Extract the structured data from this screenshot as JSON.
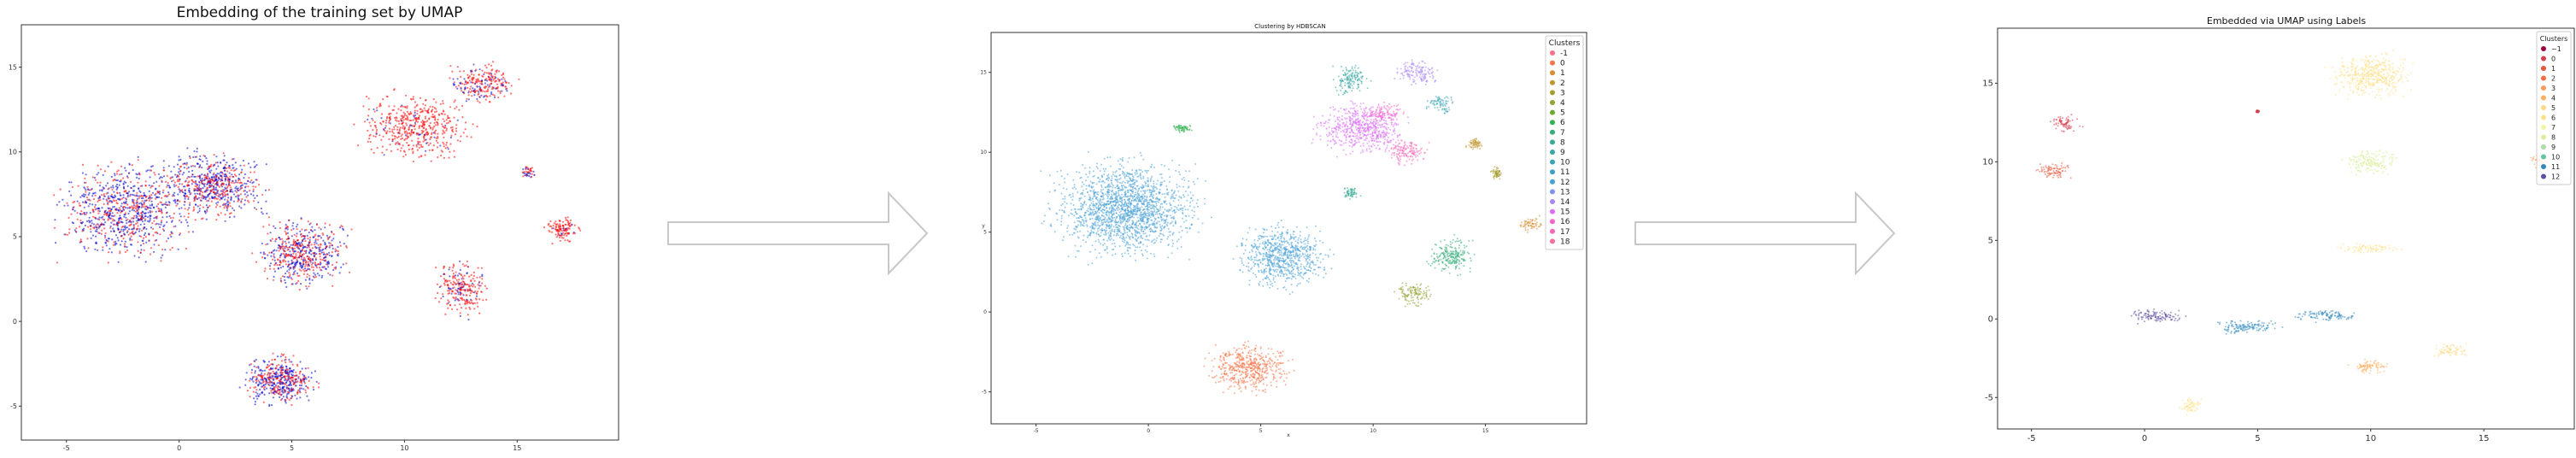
{
  "chart_data": [
    {
      "type": "scatter",
      "title": "Embedding of the training set by UMAP",
      "xlabel": "",
      "ylabel": "",
      "xlim": [
        -7,
        19.5
      ],
      "ylim": [
        -7,
        17.5
      ],
      "xticks": [
        "-5",
        "0",
        "5",
        "10",
        "15"
      ],
      "xtick_values": [
        -5,
        0,
        5,
        10,
        15
      ],
      "yticks": [
        "15",
        "10",
        "5",
        "0",
        "-5"
      ],
      "ytick_values": [
        15,
        10,
        5,
        0,
        -5
      ],
      "series": [
        {
          "name": "red",
          "color": "#ff0000"
        },
        {
          "name": "blue",
          "color": "#0000cc"
        }
      ],
      "clusters": [
        {
          "x": -2.5,
          "y": 6.5,
          "rx": 3.5,
          "ry": 3.5,
          "mix": 0.6
        },
        {
          "x": 1.5,
          "y": 8.0,
          "rx": 3.0,
          "ry": 2.5,
          "mix": 0.55
        },
        {
          "x": 5.5,
          "y": 4.0,
          "rx": 2.5,
          "ry": 2.5,
          "mix": 0.5
        },
        {
          "x": 4.5,
          "y": -3.5,
          "rx": 2.0,
          "ry": 1.8,
          "mix": 0.55
        },
        {
          "x": 10.5,
          "y": 11.5,
          "rx": 3.0,
          "ry": 2.5,
          "mix": 0.1
        },
        {
          "x": 13.5,
          "y": 14.0,
          "rx": 1.8,
          "ry": 1.5,
          "mix": 0.3
        },
        {
          "x": 12.5,
          "y": 2.0,
          "rx": 1.5,
          "ry": 2.0,
          "mix": 0.2
        },
        {
          "x": 17.0,
          "y": 5.5,
          "rx": 1.0,
          "ry": 1.0,
          "mix": 0.05
        },
        {
          "x": 15.5,
          "y": 8.8,
          "rx": 0.4,
          "ry": 0.6,
          "mix": 0.5
        }
      ]
    },
    {
      "type": "scatter",
      "title": "Clustering by HDBSCAN",
      "xlabel": "x",
      "ylabel": "y",
      "xlim": [
        -7,
        19.5
      ],
      "ylim": [
        -7,
        17.5
      ],
      "xticks": [
        "-5",
        "0",
        "5",
        "10",
        "15"
      ],
      "xtick_values": [
        -5,
        0,
        5,
        10,
        15
      ],
      "yticks": [
        "15",
        "10",
        "5",
        "0",
        "-5"
      ],
      "ytick_values": [
        15,
        10,
        5,
        0,
        -5
      ],
      "legend": {
        "title": "Clusters",
        "position": "top-right",
        "entries": [
          "-1",
          "0",
          "1",
          "2",
          "3",
          "4",
          "5",
          "6",
          "7",
          "8",
          "9",
          "10",
          "11",
          "12",
          "13",
          "14",
          "15",
          "16",
          "17",
          "18"
        ],
        "colors": [
          "#f77189",
          "#f67448",
          "#d58c32",
          "#c0962f",
          "#a69d31",
          "#94a231",
          "#6eaa31",
          "#33b04f",
          "#36ad7c",
          "#38aa93",
          "#39a8a4",
          "#3ba4b4",
          "#3da0c4",
          "#48a0d6",
          "#7d95e9",
          "#aa88f4",
          "#d970f4",
          "#f565cc",
          "#f669b6",
          "#f66d9c"
        ]
      },
      "clusters": [
        {
          "label": "12",
          "x": -1.0,
          "y": 6.5,
          "rx": 4.0,
          "ry": 3.8
        },
        {
          "label": "12",
          "x": 6.0,
          "y": 3.5,
          "rx": 2.5,
          "ry": 2.5
        },
        {
          "label": "0",
          "x": 4.5,
          "y": -3.5,
          "rx": 2.2,
          "ry": 2.0
        },
        {
          "label": "15",
          "x": 9.5,
          "y": 11.5,
          "rx": 2.5,
          "ry": 2.0
        },
        {
          "label": "7",
          "x": 13.5,
          "y": 3.5,
          "rx": 1.2,
          "ry": 1.5
        },
        {
          "label": "4",
          "x": 11.8,
          "y": 1.2,
          "rx": 1.0,
          "ry": 1.0
        },
        {
          "label": "9",
          "x": 9.0,
          "y": 14.5,
          "rx": 1.0,
          "ry": 1.2
        },
        {
          "label": "14",
          "x": 12.0,
          "y": 15.0,
          "rx": 1.2,
          "ry": 1.0
        },
        {
          "label": "10",
          "x": 13.0,
          "y": 13.0,
          "rx": 0.8,
          "ry": 0.8
        },
        {
          "label": "3",
          "x": 15.5,
          "y": 8.7,
          "rx": 0.3,
          "ry": 0.5
        },
        {
          "label": "2",
          "x": 14.5,
          "y": 10.5,
          "rx": 0.5,
          "ry": 0.4
        },
        {
          "label": "1",
          "x": 17.0,
          "y": 5.5,
          "rx": 0.6,
          "ry": 0.6
        },
        {
          "label": "8",
          "x": 9.0,
          "y": 7.5,
          "rx": 0.5,
          "ry": 0.5
        },
        {
          "label": "6",
          "x": 1.5,
          "y": 11.5,
          "rx": 0.6,
          "ry": 0.3
        },
        {
          "label": "17",
          "x": 11.5,
          "y": 10.0,
          "rx": 1.2,
          "ry": 1.0
        },
        {
          "label": "16",
          "x": 10.5,
          "y": 12.5,
          "rx": 1.0,
          "ry": 0.8
        }
      ]
    },
    {
      "type": "scatter",
      "title": "Embedded via UMAP using Labels",
      "xlabel": "",
      "ylabel": "",
      "xlim": [
        -6.5,
        19
      ],
      "ylim": [
        -7,
        18.5
      ],
      "xticks": [
        "-5",
        "0",
        "5",
        "10",
        "15"
      ],
      "xtick_values": [
        -5,
        0,
        5,
        10,
        15
      ],
      "yticks": [
        "15",
        "10",
        "5",
        "0",
        "-5"
      ],
      "ytick_values": [
        15,
        10,
        5,
        0,
        -5
      ],
      "legend": {
        "title": "Clusters",
        "position": "top-right",
        "entries": [
          "−1",
          "0",
          "1",
          "2",
          "3",
          "4",
          "5",
          "6",
          "7",
          "8",
          "9",
          "10",
          "11",
          "12"
        ],
        "colors": [
          "#9e0142",
          "#d53e4f",
          "#e8553a",
          "#f46d43",
          "#fb9c59",
          "#fdae61",
          "#fed885",
          "#fee08b",
          "#eef7a3",
          "#d8ef9b",
          "#abdda4",
          "#66c2a5",
          "#3288bd",
          "#5e4fa2"
        ]
      },
      "clusters": [
        {
          "label": "0",
          "x": -3.5,
          "y": 12.5,
          "rx": 0.9,
          "ry": 0.7
        },
        {
          "label": "1",
          "x": -4.0,
          "y": 9.5,
          "rx": 1.0,
          "ry": 0.7
        },
        {
          "label": "6",
          "x": 10.0,
          "y": 15.5,
          "rx": 2.2,
          "ry": 1.8
        },
        {
          "label": "8",
          "x": 10.0,
          "y": 10.0,
          "rx": 1.5,
          "ry": 1.0
        },
        {
          "label": "6",
          "x": 10.0,
          "y": 4.5,
          "rx": 1.8,
          "ry": 0.4
        },
        {
          "label": "12",
          "x": 0.5,
          "y": 0.2,
          "rx": 1.6,
          "ry": 0.6
        },
        {
          "label": "11",
          "x": 4.5,
          "y": -0.5,
          "rx": 1.8,
          "ry": 0.6
        },
        {
          "label": "11",
          "x": 8.0,
          "y": 0.2,
          "rx": 1.8,
          "ry": 0.5
        },
        {
          "label": "4",
          "x": 10.0,
          "y": -3.0,
          "rx": 1.2,
          "ry": 0.6
        },
        {
          "label": "5",
          "x": 13.5,
          "y": -2.0,
          "rx": 1.0,
          "ry": 0.6
        },
        {
          "label": "6",
          "x": 2.0,
          "y": -5.5,
          "rx": 0.6,
          "ry": 0.7
        },
        {
          "label": "3",
          "x": 17.5,
          "y": 10.0,
          "rx": 0.5,
          "ry": 0.6
        },
        {
          "label": "0",
          "x": 5.0,
          "y": 13.2,
          "rx": 0.1,
          "ry": 0.1
        }
      ]
    }
  ]
}
